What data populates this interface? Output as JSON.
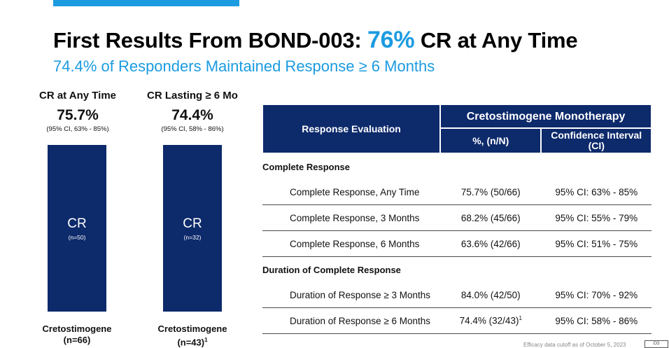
{
  "slide": {
    "title_prefix": "First Results From BOND-003: ",
    "title_highlight": "76%",
    "title_suffix": " CR at Any Time",
    "subtitle": "74.4% of Responders Maintained Response ≥ 6 Months",
    "accent_color": "#1b9be0",
    "navy_color": "#0d2a6b"
  },
  "bars": [
    {
      "title": "CR at Any Time",
      "percent": "75.7%",
      "ci": "(95% CI, 63% - 85%)",
      "label": "CR",
      "n_inside": "(n=50)",
      "drug": "Cretostimogene",
      "n": "(n=66)",
      "n_sup": ""
    },
    {
      "title": "CR Lasting ≥ 6 Mo",
      "percent": "74.4%",
      "ci": "(95% CI, 58% - 86%)",
      "label": "CR",
      "n_inside": "(n=32)",
      "drug": "Cretostimogene",
      "n": "(n=43)",
      "n_sup": "1"
    }
  ],
  "table": {
    "header_eval": "Response Evaluation",
    "header_group": "Cretostimogene Monotherapy",
    "header_pct": "%, (n/N)",
    "header_ci": "Confidence Interval (CI)",
    "sections": [
      {
        "title": "Complete Response",
        "rows": [
          {
            "label": "Complete Response, Any Time",
            "pct": "75.7% (50/66)",
            "sup": "",
            "ci": "95% CI: 63% - 85%"
          },
          {
            "label": "Complete Response, 3 Months",
            "pct": "68.2% (45/66)",
            "sup": "",
            "ci": "95% CI: 55% - 79%"
          },
          {
            "label": "Complete Response, 6 Months",
            "pct": "63.6% (42/66)",
            "sup": "",
            "ci": "95% CI: 51% - 75%"
          }
        ]
      },
      {
        "title": "Duration of Complete Response",
        "rows": [
          {
            "label": "Duration of Response ≥ 3 Months",
            "pct": "84.0% (42/50)",
            "sup": "",
            "ci": "95% CI: 70% - 92%"
          },
          {
            "label": "Duration of Response ≥ 6 Months",
            "pct": "74.4% (32/43)",
            "sup": "1",
            "ci": "95% CI: 58% - 86%"
          }
        ]
      }
    ]
  },
  "footnote": "Efficacy data cutoff as of October 5, 2023",
  "logo_text": "CG"
}
